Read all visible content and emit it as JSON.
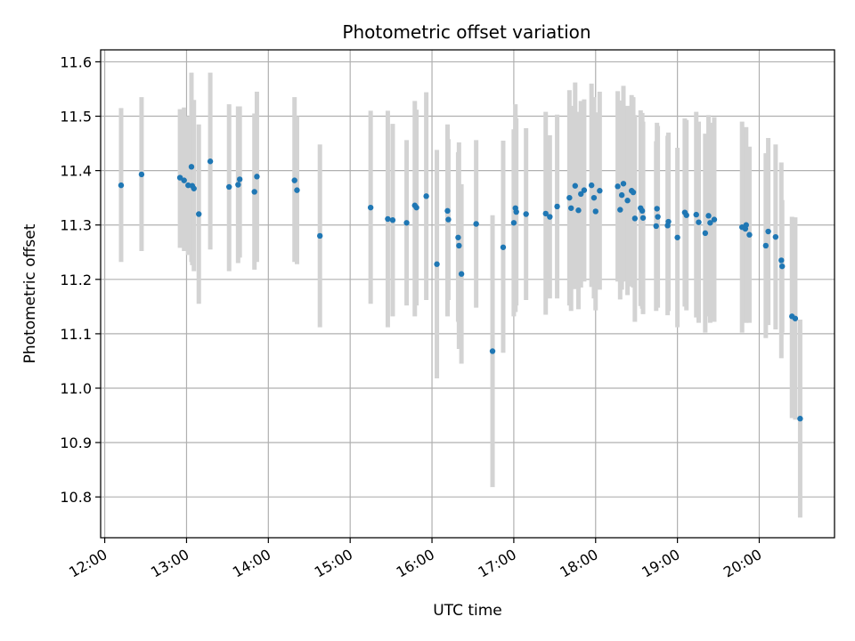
{
  "chart_data": {
    "type": "scatter",
    "title": "Photometric offset variation",
    "xlabel": "UTC time",
    "ylabel": "Photometric offset",
    "x_format": "HH:MM (hours, UTC)",
    "xlim": [
      11.95,
      20.92
    ],
    "ylim": [
      10.725,
      11.622
    ],
    "x_ticks": [
      12,
      13,
      14,
      15,
      16,
      17,
      18,
      19,
      20
    ],
    "x_tick_labels": [
      "12:00",
      "13:00",
      "14:00",
      "15:00",
      "16:00",
      "17:00",
      "18:00",
      "19:00",
      "20:00"
    ],
    "y_ticks": [
      10.8,
      10.9,
      11.0,
      11.1,
      11.2,
      11.3,
      11.4,
      11.5,
      11.6
    ],
    "y_tick_labels": [
      "10.8",
      "10.9",
      "11.0",
      "11.1",
      "11.2",
      "11.3",
      "11.4",
      "11.5",
      "11.6"
    ],
    "grid": true,
    "point_color": "#1f77b4",
    "errorbar_color": "#d3d3d3",
    "series": [
      {
        "x": [
          12.2,
          12.45,
          12.92,
          12.97,
          13.02,
          13.06,
          13.07,
          13.09,
          13.15,
          13.29,
          13.52,
          13.63,
          13.65,
          13.83,
          13.86,
          14.32,
          14.35,
          14.63,
          15.25,
          15.46,
          15.52,
          15.69,
          15.79,
          15.81,
          15.93,
          16.06,
          16.19,
          16.2,
          16.32,
          16.33,
          16.36,
          16.54,
          16.74,
          16.87,
          17.0,
          17.02,
          17.03,
          17.15,
          17.39,
          17.44,
          17.53,
          17.68,
          17.7,
          17.75,
          17.79,
          17.82,
          17.86,
          17.95,
          17.98,
          18.0,
          18.05,
          18.27,
          18.3,
          18.32,
          18.34,
          18.39,
          18.44,
          18.46,
          18.48,
          18.55,
          18.57,
          18.58,
          18.74,
          18.75,
          18.76,
          18.88,
          18.89,
          19.0,
          19.09,
          19.11,
          19.23,
          19.26,
          19.34,
          19.38,
          19.4,
          19.45,
          19.79,
          19.83,
          19.84,
          19.88,
          20.08,
          20.11,
          20.2,
          20.27,
          20.28,
          20.4,
          20.44,
          20.5
        ],
        "y": [
          11.373,
          11.393,
          11.387,
          11.382,
          11.373,
          11.407,
          11.372,
          11.367,
          11.32,
          11.417,
          11.37,
          11.374,
          11.384,
          11.361,
          11.389,
          11.382,
          11.364,
          11.28,
          11.332,
          11.311,
          11.309,
          11.304,
          11.336,
          11.332,
          11.353,
          11.228,
          11.326,
          11.31,
          11.277,
          11.262,
          11.21,
          11.302,
          11.068,
          11.259,
          11.304,
          11.331,
          11.324,
          11.32,
          11.321,
          11.315,
          11.334,
          11.35,
          11.331,
          11.372,
          11.327,
          11.357,
          11.364,
          11.373,
          11.35,
          11.325,
          11.363,
          11.371,
          11.328,
          11.355,
          11.376,
          11.345,
          11.363,
          11.36,
          11.312,
          11.331,
          11.326,
          11.313,
          11.298,
          11.33,
          11.315,
          11.299,
          11.306,
          11.277,
          11.323,
          11.318,
          11.319,
          11.305,
          11.285,
          11.317,
          11.304,
          11.31,
          11.296,
          11.293,
          11.3,
          11.282,
          11.262,
          11.288,
          11.278,
          11.235,
          11.224,
          11.132,
          11.128,
          10.944
        ],
        "yerr_low": [
          11.232,
          11.252,
          11.258,
          11.252,
          11.245,
          11.232,
          11.226,
          11.215,
          11.155,
          11.255,
          11.215,
          11.23,
          11.24,
          11.218,
          11.232,
          11.232,
          11.228,
          11.112,
          11.155,
          11.112,
          11.132,
          11.152,
          11.132,
          11.152,
          11.162,
          11.018,
          11.132,
          11.162,
          11.122,
          11.072,
          11.045,
          11.148,
          10.818,
          11.065,
          11.132,
          11.14,
          11.152,
          11.162,
          11.135,
          11.165,
          11.165,
          11.152,
          11.142,
          11.182,
          11.145,
          11.185,
          11.196,
          11.186,
          11.165,
          11.143,
          11.181,
          11.196,
          11.163,
          11.181,
          11.196,
          11.171,
          11.187,
          11.185,
          11.122,
          11.151,
          11.146,
          11.136,
          11.142,
          11.172,
          11.148,
          11.134,
          11.142,
          11.112,
          11.15,
          11.143,
          11.13,
          11.12,
          11.102,
          11.132,
          11.12,
          11.122,
          11.102,
          11.12,
          11.12,
          11.12,
          11.092,
          11.116,
          11.108,
          11.055,
          11.102,
          10.945,
          10.942,
          10.762
        ],
        "yerr_high": [
          11.515,
          11.535,
          11.513,
          11.516,
          11.5,
          11.58,
          11.518,
          11.53,
          11.485,
          11.58,
          11.522,
          11.518,
          11.518,
          11.505,
          11.545,
          11.535,
          11.5,
          11.448,
          11.51,
          11.51,
          11.486,
          11.456,
          11.528,
          11.512,
          11.544,
          11.438,
          11.485,
          11.458,
          11.434,
          11.452,
          11.375,
          11.456,
          11.318,
          11.455,
          11.476,
          11.522,
          11.496,
          11.478,
          11.508,
          11.465,
          11.503,
          11.548,
          11.519,
          11.562,
          11.508,
          11.528,
          11.531,
          11.56,
          11.535,
          11.507,
          11.545,
          11.546,
          11.493,
          11.529,
          11.556,
          11.519,
          11.539,
          11.535,
          11.502,
          11.511,
          11.506,
          11.49,
          11.454,
          11.488,
          11.482,
          11.464,
          11.47,
          11.442,
          11.496,
          11.493,
          11.508,
          11.49,
          11.468,
          11.502,
          11.488,
          11.498,
          11.49,
          11.466,
          11.48,
          11.444,
          11.432,
          11.46,
          11.448,
          11.415,
          11.346,
          11.315,
          11.314,
          11.126
        ]
      }
    ]
  }
}
